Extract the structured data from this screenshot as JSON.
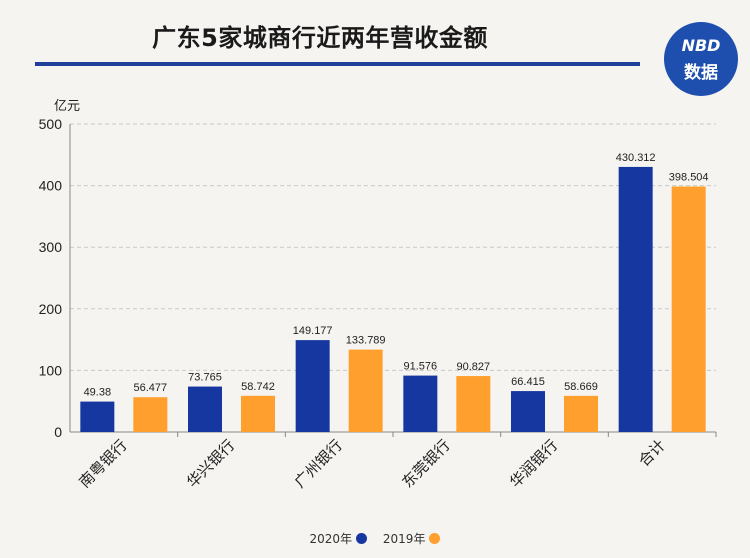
{
  "header": {
    "title": "广东5家城商行近两年营收金额"
  },
  "logo": {
    "brand": "NBD",
    "sub": "数据"
  },
  "colors": {
    "series_2020": "#1737a0",
    "series_2019": "#ff9f2e"
  },
  "chart_data": {
    "type": "bar",
    "title": "广东5家城商行近两年营收金额",
    "ylabel": "亿元",
    "xlabel": "",
    "ylim": [
      0,
      500
    ],
    "yticks": [
      0,
      100,
      200,
      300,
      400,
      500
    ],
    "categories": [
      "南粤银行",
      "华兴银行",
      "广州银行",
      "东莞银行",
      "华润银行",
      "合计"
    ],
    "series": [
      {
        "name": "2020年",
        "values": [
          49.38,
          73.765,
          149.177,
          91.576,
          66.415,
          430.312
        ],
        "labels": [
          "49.38",
          "73.765",
          "149.177",
          "91.576",
          "66.415",
          "430.312"
        ]
      },
      {
        "name": "2019年",
        "values": [
          56.477,
          58.742,
          133.789,
          90.827,
          58.669,
          398.504
        ],
        "labels": [
          "56.477",
          "58.742",
          "133.789",
          "90.827",
          "58.669",
          "398.504"
        ]
      }
    ],
    "legend_position": "bottom",
    "grid": true
  }
}
